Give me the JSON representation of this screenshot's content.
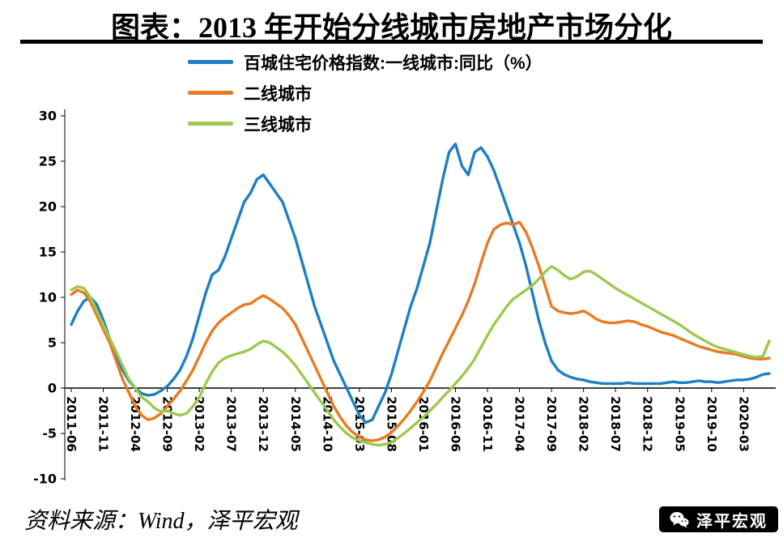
{
  "title": "图表：2013 年开始分线城市房地产市场分化",
  "legend": [
    {
      "label": "百城住宅价格指数:一线城市:同比（%）",
      "color": "#1F7EC2"
    },
    {
      "label": "二线城市",
      "color": "#E87A22"
    },
    {
      "label": "三线城市",
      "color": "#9CC94F"
    }
  ],
  "source_note": "资料来源：Wind，泽平宏观",
  "badge": {
    "label": "泽平宏观",
    "icon": "wechat-icon"
  },
  "chart_data": {
    "type": "line",
    "title": "图表：2013 年开始分线城市房地产市场分化",
    "xlabel": "",
    "ylabel": "",
    "ylim": [
      -10,
      30
    ],
    "yticks": [
      30,
      25,
      20,
      15,
      10,
      5,
      0,
      -5,
      -10
    ],
    "grid": false,
    "legend_position": "top-left",
    "x_tick_every": 5,
    "x_tick_labels": [
      "2011-06",
      "2011-11",
      "2012-04",
      "2012-09",
      "2013-02",
      "2013-07",
      "2013-12",
      "2014-05",
      "2014-10",
      "2015-03",
      "2015-08",
      "2016-01",
      "2016-06",
      "2016-11",
      "2017-04",
      "2017-09",
      "2018-02",
      "2018-07",
      "2018-12",
      "2019-05",
      "2019-10",
      "2020-03"
    ],
    "x": [
      "2011-06",
      "2011-07",
      "2011-08",
      "2011-09",
      "2011-10",
      "2011-11",
      "2011-12",
      "2012-01",
      "2012-02",
      "2012-03",
      "2012-04",
      "2012-05",
      "2012-06",
      "2012-07",
      "2012-08",
      "2012-09",
      "2012-10",
      "2012-11",
      "2012-12",
      "2013-01",
      "2013-02",
      "2013-03",
      "2013-04",
      "2013-05",
      "2013-06",
      "2013-07",
      "2013-08",
      "2013-09",
      "2013-10",
      "2013-11",
      "2013-12",
      "2014-01",
      "2014-02",
      "2014-03",
      "2014-04",
      "2014-05",
      "2014-06",
      "2014-07",
      "2014-08",
      "2014-09",
      "2014-10",
      "2014-11",
      "2014-12",
      "2015-01",
      "2015-02",
      "2015-03",
      "2015-04",
      "2015-05",
      "2015-06",
      "2015-07",
      "2015-08",
      "2015-09",
      "2015-10",
      "2015-11",
      "2015-12",
      "2016-01",
      "2016-02",
      "2016-03",
      "2016-04",
      "2016-05",
      "2016-06",
      "2016-07",
      "2016-08",
      "2016-09",
      "2016-10",
      "2016-11",
      "2016-12",
      "2017-01",
      "2017-02",
      "2017-03",
      "2017-04",
      "2017-05",
      "2017-06",
      "2017-07",
      "2017-08",
      "2017-09",
      "2017-10",
      "2017-11",
      "2017-12",
      "2018-01",
      "2018-02",
      "2018-03",
      "2018-04",
      "2018-05",
      "2018-06",
      "2018-07",
      "2018-08",
      "2018-09",
      "2018-10",
      "2018-11",
      "2018-12",
      "2019-01",
      "2019-02",
      "2019-03",
      "2019-04",
      "2019-05",
      "2019-06",
      "2019-07",
      "2019-08",
      "2019-09",
      "2019-10",
      "2019-11",
      "2019-12",
      "2020-01",
      "2020-02",
      "2020-03",
      "2020-04",
      "2020-05",
      "2020-06",
      "2020-07"
    ],
    "series": [
      {
        "name": "百城住宅价格指数:一线城市:同比（%）",
        "color": "#1F7EC2",
        "values": [
          7.0,
          8.5,
          9.6,
          10.0,
          9.2,
          7.5,
          5.5,
          3.5,
          2.0,
          0.8,
          0.0,
          -0.6,
          -0.8,
          -0.7,
          -0.3,
          0.2,
          1.0,
          2.0,
          3.5,
          5.5,
          8.0,
          10.5,
          12.5,
          13.0,
          14.5,
          16.5,
          18.5,
          20.5,
          21.5,
          23.0,
          23.5,
          22.5,
          21.5,
          20.5,
          18.5,
          16.5,
          14.0,
          11.5,
          9.0,
          7.0,
          5.0,
          3.0,
          1.5,
          0.0,
          -1.5,
          -3.0,
          -3.8,
          -3.5,
          -2.0,
          -0.5,
          1.5,
          4.0,
          6.5,
          9.0,
          11.0,
          13.5,
          16.0,
          19.5,
          23.0,
          26.0,
          26.9,
          24.5,
          23.5,
          26.0,
          26.5,
          25.5,
          24.0,
          22.0,
          20.0,
          18.0,
          16.0,
          13.5,
          10.5,
          7.5,
          5.0,
          3.0,
          2.0,
          1.5,
          1.2,
          1.0,
          0.9,
          0.7,
          0.6,
          0.5,
          0.5,
          0.5,
          0.5,
          0.6,
          0.5,
          0.5,
          0.5,
          0.5,
          0.5,
          0.6,
          0.7,
          0.6,
          0.6,
          0.7,
          0.8,
          0.7,
          0.7,
          0.6,
          0.7,
          0.8,
          0.9,
          0.9,
          1.0,
          1.2,
          1.5,
          1.6
        ]
      },
      {
        "name": "二线城市",
        "color": "#E87A22",
        "values": [
          10.3,
          10.8,
          10.5,
          9.5,
          8.0,
          6.5,
          5.0,
          3.0,
          1.0,
          -0.5,
          -2.0,
          -3.0,
          -3.5,
          -3.3,
          -2.8,
          -2.0,
          -1.2,
          -0.3,
          0.8,
          2.0,
          3.5,
          5.0,
          6.3,
          7.2,
          7.8,
          8.3,
          8.8,
          9.2,
          9.3,
          9.8,
          10.2,
          9.8,
          9.3,
          8.8,
          8.0,
          7.0,
          5.5,
          4.0,
          2.5,
          1.0,
          -0.5,
          -2.0,
          -3.2,
          -4.2,
          -4.9,
          -5.4,
          -5.7,
          -5.8,
          -5.7,
          -5.4,
          -4.9,
          -4.2,
          -3.4,
          -2.5,
          -1.5,
          -0.4,
          0.8,
          2.3,
          3.8,
          5.2,
          6.6,
          8.0,
          9.6,
          11.5,
          13.8,
          16.0,
          17.5,
          18.0,
          18.2,
          18.0,
          18.3,
          17.2,
          15.5,
          13.5,
          11.3,
          9.0,
          8.5,
          8.3,
          8.2,
          8.3,
          8.5,
          8.1,
          7.6,
          7.3,
          7.2,
          7.2,
          7.3,
          7.4,
          7.3,
          7.0,
          6.8,
          6.5,
          6.2,
          6.0,
          5.8,
          5.5,
          5.2,
          4.9,
          4.6,
          4.4,
          4.2,
          4.0,
          3.9,
          3.8,
          3.7,
          3.5,
          3.3,
          3.2,
          3.2,
          3.3
        ]
      },
      {
        "name": "三线城市",
        "color": "#9CC94F",
        "values": [
          10.8,
          11.2,
          11.0,
          10.0,
          8.5,
          7.0,
          5.5,
          4.0,
          2.5,
          1.0,
          0.0,
          -1.0,
          -1.5,
          -2.2,
          -2.6,
          -2.5,
          -2.8,
          -3.0,
          -2.8,
          -2.0,
          -1.0,
          0.5,
          1.8,
          2.8,
          3.3,
          3.6,
          3.8,
          4.0,
          4.3,
          4.8,
          5.2,
          5.0,
          4.5,
          4.0,
          3.3,
          2.5,
          1.5,
          0.5,
          -0.5,
          -1.5,
          -2.5,
          -3.5,
          -4.3,
          -5.0,
          -5.5,
          -5.8,
          -6.0,
          -6.2,
          -6.3,
          -6.2,
          -6.0,
          -5.5,
          -5.0,
          -4.4,
          -3.8,
          -3.2,
          -2.5,
          -1.8,
          -1.0,
          -0.3,
          0.5,
          1.3,
          2.2,
          3.2,
          4.5,
          5.8,
          7.0,
          8.0,
          9.0,
          9.8,
          10.3,
          10.8,
          11.3,
          12.0,
          12.8,
          13.4,
          13.0,
          12.4,
          12.0,
          12.3,
          12.8,
          12.9,
          12.5,
          12.0,
          11.5,
          11.0,
          10.6,
          10.2,
          9.8,
          9.4,
          9.0,
          8.6,
          8.2,
          7.8,
          7.4,
          7.0,
          6.5,
          6.0,
          5.6,
          5.2,
          4.8,
          4.5,
          4.3,
          4.1,
          3.9,
          3.7,
          3.5,
          3.4,
          3.5,
          5.2
        ]
      }
    ]
  }
}
